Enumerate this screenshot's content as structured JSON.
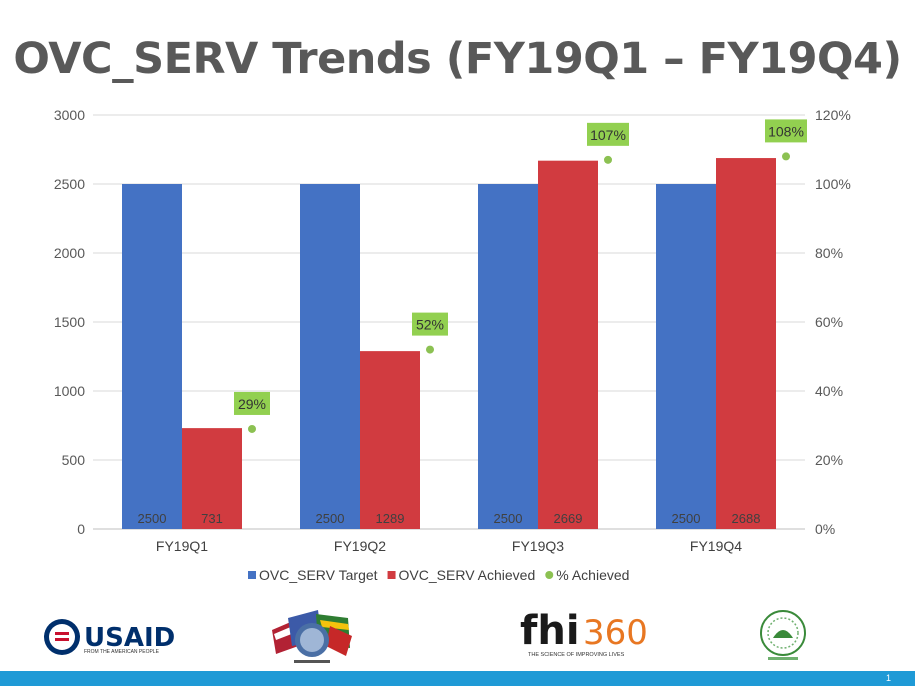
{
  "title": "OVC_SERV Trends (FY19Q1 – FY19Q4)",
  "chart_data": {
    "type": "bar",
    "title": "",
    "categories": [
      "FY19Q1",
      "FY19Q2",
      "FY19Q3",
      "FY19Q4"
    ],
    "series": [
      {
        "name": "OVC_SERV Target",
        "type": "bar",
        "axis": "left",
        "color": "#4472c4",
        "values": [
          2500,
          2500,
          2500,
          2500
        ],
        "labels": [
          "2500",
          "2500",
          "2500",
          "2500"
        ]
      },
      {
        "name": "OVC_SERV Achieved",
        "type": "bar",
        "axis": "left",
        "color": "#d13b40",
        "values": [
          731,
          1289,
          2669,
          2688
        ],
        "labels": [
          "731",
          "1289",
          "2669",
          "2688"
        ]
      },
      {
        "name": "% Achieved",
        "type": "scatter",
        "axis": "right",
        "color": "#8cc152",
        "values": [
          29,
          52,
          107,
          108
        ],
        "labels": [
          "29%",
          "52%",
          "107%",
          "108%"
        ]
      }
    ],
    "ylim_left": [
      0,
      3000
    ],
    "ylim_right": [
      0,
      120
    ],
    "yticks_left": [
      "0",
      "500",
      "1000",
      "1500",
      "2000",
      "2500",
      "3000"
    ],
    "yticks_right": [
      "0%",
      "20%",
      "40%",
      "60%",
      "80%",
      "100%",
      "120%"
    ],
    "grid": true,
    "legend": "bottom"
  },
  "logos": {
    "usaid": {
      "name": "USAID",
      "tagline": "FROM THE AMERICAN PEOPLE"
    },
    "fhi360": {
      "name_a": "fhi",
      "name_b": "360",
      "tagline": "THE SCIENCE OF IMPROVING LIVES"
    }
  },
  "colors": {
    "accent_bar": "#1f9ad6",
    "title": "#595959"
  },
  "page_number": "1"
}
